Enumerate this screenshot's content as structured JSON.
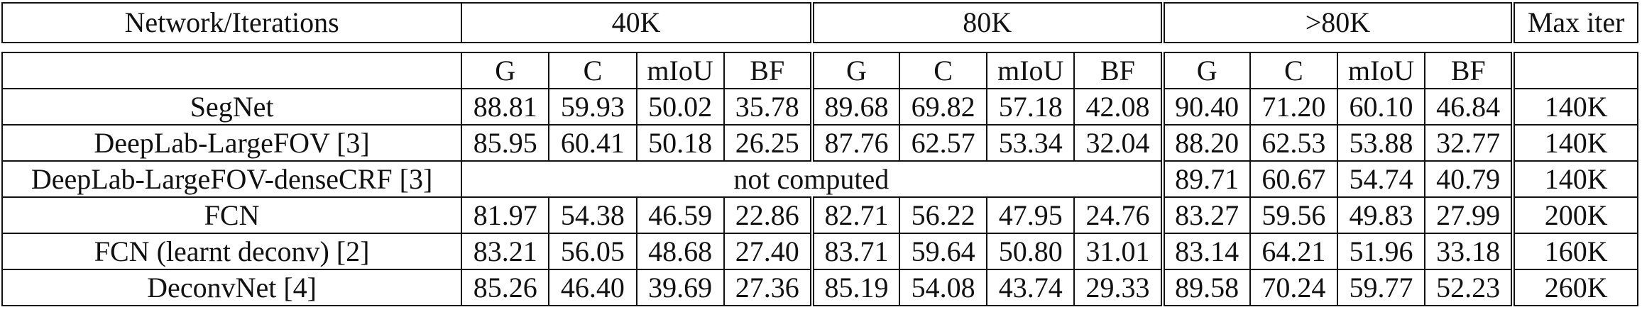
{
  "table": {
    "header": {
      "network_label": "Network/Iterations",
      "groups": [
        "40K",
        "80K",
        ">80K"
      ],
      "max_iter_label": "Max iter"
    },
    "subheaders": [
      "G",
      "C",
      "mIoU",
      "BF"
    ],
    "rows": [
      {
        "network": "SegNet",
        "values": [
          [
            "88.81",
            "59.93",
            "50.02",
            "35.78"
          ],
          [
            "89.68",
            "69.82",
            "57.18",
            "42.08"
          ],
          [
            "90.40",
            "71.20",
            "60.10",
            "46.84"
          ]
        ],
        "max_iter": "140K"
      },
      {
        "network": "DeepLab-LargeFOV [3]",
        "values": [
          [
            "85.95",
            "60.41",
            "50.18",
            "26.25"
          ],
          [
            "87.76",
            "62.57",
            "53.34",
            "32.04"
          ],
          [
            "88.20",
            "62.53",
            "53.88",
            "32.77"
          ]
        ],
        "max_iter": "140K"
      },
      {
        "network": "DeepLab-LargeFOV-denseCRF [3]",
        "note": "not computed",
        "values_gt80": [
          "89.71",
          "60.67",
          "54.74",
          "40.79"
        ],
        "max_iter": "140K"
      },
      {
        "network": "FCN",
        "values": [
          [
            "81.97",
            "54.38",
            "46.59",
            "22.86"
          ],
          [
            "82.71",
            "56.22",
            "47.95",
            "24.76"
          ],
          [
            "83.27",
            "59.56",
            "49.83",
            "27.99"
          ]
        ],
        "max_iter": "200K"
      },
      {
        "network": "FCN (learnt deconv) [2]",
        "values": [
          [
            "83.21",
            "56.05",
            "48.68",
            "27.40"
          ],
          [
            "83.71",
            "59.64",
            "50.80",
            "31.01"
          ],
          [
            "83.14",
            "64.21",
            "51.96",
            "33.18"
          ]
        ],
        "max_iter": "160K"
      },
      {
        "network": "DeconvNet [4]",
        "values": [
          [
            "85.26",
            "46.40",
            "39.69",
            "27.36"
          ],
          [
            "85.19",
            "54.08",
            "43.74",
            "29.33"
          ],
          [
            "89.58",
            "70.24",
            "59.77",
            "52.23"
          ]
        ],
        "max_iter": "260K"
      }
    ]
  }
}
